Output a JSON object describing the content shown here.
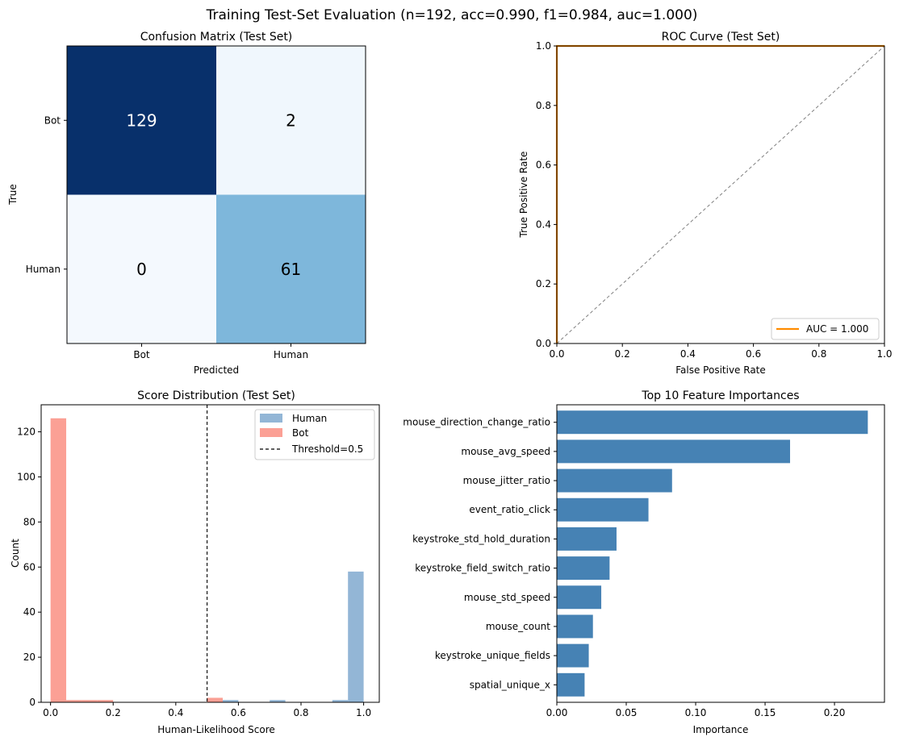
{
  "figure": {
    "suptitle": "Training Test-Set Evaluation  (n=192, acc=0.990, f1=0.984, auc=1.000)"
  },
  "chart_data": [
    {
      "type": "heatmap",
      "title": "Confusion Matrix (Test Set)",
      "xlabel": "Predicted",
      "ylabel": "True",
      "x_categories": [
        "Bot",
        "Human"
      ],
      "y_categories": [
        "Bot",
        "Human"
      ],
      "matrix": [
        [
          129,
          2
        ],
        [
          0,
          61
        ]
      ],
      "colormap": "Blues",
      "colors": {
        "dark": "#08306b",
        "mid": "#77b3d9",
        "light": "#f4f9fe"
      }
    },
    {
      "type": "line",
      "title": "ROC Curve (Test Set)",
      "xlabel": "False Positive Rate",
      "ylabel": "True Positive Rate",
      "xlim": [
        0,
        1
      ],
      "ylim": [
        0,
        1
      ],
      "xticks": [
        "0.0",
        "0.2",
        "0.4",
        "0.6",
        "0.8",
        "1.0"
      ],
      "yticks": [
        "0.0",
        "0.2",
        "0.4",
        "0.6",
        "0.8",
        "1.0"
      ],
      "series": [
        {
          "name": "AUC = 1.000",
          "x": [
            0,
            0,
            1
          ],
          "y": [
            0,
            1,
            1
          ],
          "color": "#ff8c00"
        },
        {
          "x": [
            0,
            1
          ],
          "y": [
            0,
            1
          ],
          "color": "#808080",
          "style": "dashed"
        }
      ],
      "legend": "bottom-right"
    },
    {
      "type": "bar",
      "subtype": "histogram",
      "title": "Score Distribution (Test Set)",
      "xlabel": "Human-Likelihood Score",
      "ylabel": "Count",
      "xlim": [
        -0.03,
        1.05
      ],
      "ylim": [
        0,
        132
      ],
      "xticks": [
        "0.0",
        "0.2",
        "0.4",
        "0.6",
        "0.8",
        "1.0"
      ],
      "yticks": [
        "0",
        "20",
        "40",
        "60",
        "80",
        "100",
        "120"
      ],
      "bin_width": 0.05,
      "series": [
        {
          "name": "Human",
          "color": "#6f9dc8",
          "opacity": 0.75,
          "bins": [
            [
              0.55,
              1
            ],
            [
              0.7,
              1
            ],
            [
              0.9,
              1
            ],
            [
              0.95,
              58
            ]
          ]
        },
        {
          "name": "Bot",
          "color": "#fa8072",
          "opacity": 0.75,
          "bins": [
            [
              0.0,
              126
            ],
            [
              0.05,
              1
            ],
            [
              0.1,
              1
            ],
            [
              0.15,
              1
            ],
            [
              0.5,
              2
            ]
          ]
        }
      ],
      "threshold": {
        "name": "Threshold=0.5",
        "value": 0.5
      },
      "legend": "top-right"
    },
    {
      "type": "bar",
      "orientation": "horizontal",
      "title": "Top 10 Feature Importances",
      "xlabel": "Importance",
      "xlim": [
        0,
        0.236
      ],
      "xticks": [
        0.0,
        0.05,
        0.1,
        0.15,
        0.2
      ],
      "xtick_labels": [
        "0.00",
        "0.05",
        "0.10",
        "0.15",
        "0.20"
      ],
      "color": "#4682b4",
      "categories": [
        "mouse_direction_change_ratio",
        "mouse_avg_speed",
        "mouse_jitter_ratio",
        "event_ratio_click",
        "keystroke_std_hold_duration",
        "keystroke_field_switch_ratio",
        "mouse_std_speed",
        "mouse_count",
        "keystroke_unique_fields",
        "spatial_unique_x"
      ],
      "values": [
        0.224,
        0.168,
        0.083,
        0.066,
        0.043,
        0.038,
        0.032,
        0.026,
        0.023,
        0.02
      ]
    }
  ]
}
